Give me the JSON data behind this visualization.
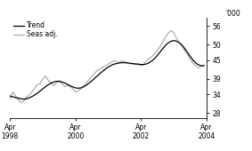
{
  "title": "",
  "ylabel": "'000",
  "yticks": [
    28,
    34,
    39,
    45,
    50,
    56
  ],
  "ylim": [
    26.5,
    58.5
  ],
  "xlim": [
    0,
    72
  ],
  "xtick_positions": [
    0,
    24,
    48,
    72
  ],
  "xtick_labels": [
    "Apr\n1998",
    "Apr\n2000",
    "Apr\n2002",
    "Apr\n2004"
  ],
  "legend_entries": [
    "Trend",
    "Seas adj."
  ],
  "trend_color": "#000000",
  "seas_color": "#aaaaaa",
  "background_color": "#ffffff",
  "trend": [
    33.5,
    33.2,
    33.0,
    32.8,
    32.6,
    32.5,
    32.6,
    32.9,
    33.3,
    33.8,
    34.4,
    35.1,
    35.8,
    36.5,
    37.1,
    37.6,
    38.0,
    38.2,
    38.2,
    38.0,
    37.7,
    37.2,
    36.8,
    36.4,
    36.1,
    36.0,
    36.1,
    36.5,
    37.0,
    37.7,
    38.4,
    39.2,
    40.0,
    40.8,
    41.5,
    42.2,
    42.8,
    43.3,
    43.7,
    43.9,
    44.1,
    44.2,
    44.2,
    44.1,
    44.0,
    43.9,
    43.8,
    43.7,
    43.6,
    43.6,
    43.8,
    44.2,
    44.8,
    45.6,
    46.6,
    47.7,
    48.8,
    49.8,
    50.6,
    51.1,
    51.3,
    51.1,
    50.6,
    49.8,
    48.7,
    47.5,
    46.2,
    45.0,
    44.1,
    43.5,
    43.2,
    43.2
  ],
  "seas": [
    32.5,
    34.8,
    33.5,
    32.2,
    31.5,
    31.8,
    33.2,
    33.8,
    34.8,
    36.0,
    37.2,
    37.5,
    39.0,
    40.0,
    38.5,
    37.8,
    36.8,
    37.8,
    38.5,
    37.5,
    36.5,
    37.0,
    36.5,
    35.8,
    34.8,
    35.2,
    35.8,
    36.8,
    37.8,
    38.8,
    39.8,
    40.8,
    41.8,
    42.2,
    42.8,
    43.2,
    43.8,
    44.3,
    44.8,
    44.5,
    44.2,
    44.8,
    44.5,
    44.0,
    43.8,
    43.8,
    43.5,
    43.8,
    43.2,
    43.8,
    44.8,
    45.5,
    46.2,
    47.2,
    48.2,
    49.5,
    51.0,
    52.5,
    53.8,
    54.5,
    53.8,
    52.0,
    50.5,
    49.5,
    48.0,
    46.8,
    45.2,
    44.0,
    43.2,
    42.5,
    43.0,
    43.5
  ]
}
